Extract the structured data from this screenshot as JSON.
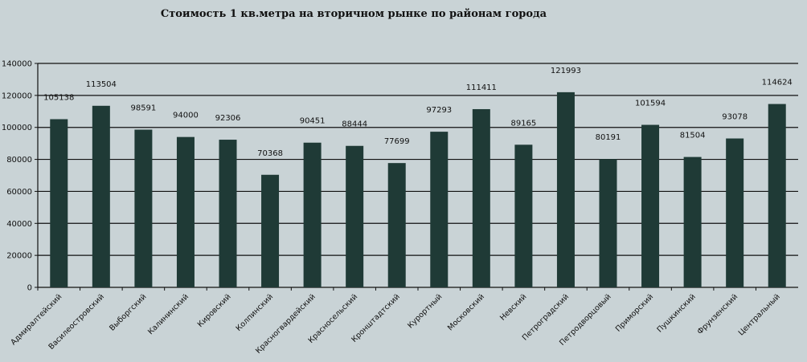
{
  "chart_data": {
    "type": "bar",
    "title": "Стоимость 1 кв.метра на вторичном  рынке по районам  города",
    "xlabel": "",
    "ylabel": "",
    "ylim": [
      0,
      140000
    ],
    "yticks": [
      0,
      20000,
      40000,
      60000,
      80000,
      100000,
      120000,
      140000
    ],
    "grid": true,
    "legend": "none",
    "bar_color": "#1f3a36",
    "categories": [
      "Адмиралтейский",
      "Василеостровский",
      "Выборгский",
      "Калининский",
      "Кировский",
      "Колпинский",
      "Красногвардейский",
      "Красносельский",
      "Кронштадтский",
      "Курортный",
      "Московский",
      "Невский",
      "Петроградский",
      "Петродворцовый",
      "Приморский",
      "Пушкинский",
      "Фрунзенский",
      "Центральный"
    ],
    "values": [
      105138,
      113504,
      98591,
      94000,
      92306,
      70368,
      90451,
      88444,
      77699,
      97293,
      111411,
      89165,
      121993,
      80191,
      101594,
      81504,
      93078,
      114624
    ]
  }
}
